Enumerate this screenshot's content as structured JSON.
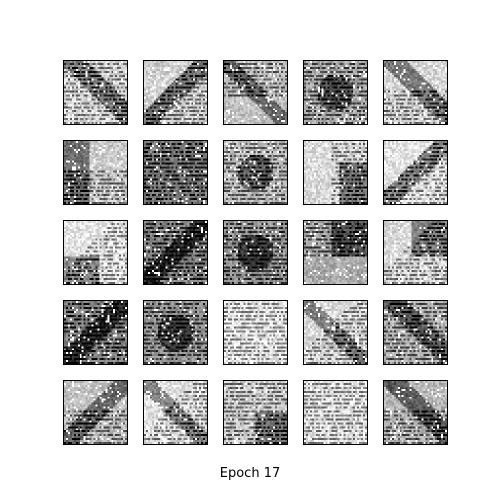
{
  "figure": {
    "caption": "Epoch 17",
    "rows": 5,
    "cols": 5,
    "tiles": [
      {
        "base": 215,
        "stripes": "full",
        "blob": "diag-right"
      },
      {
        "base": 205,
        "stripes": "diag",
        "blob": "diag-left"
      },
      {
        "base": 190,
        "stripes": "top",
        "blob": "diag-mid"
      },
      {
        "base": 170,
        "stripes": "full",
        "blob": "center"
      },
      {
        "base": 210,
        "stripes": "bottom",
        "blob": "diag-right"
      },
      {
        "base": 200,
        "stripes": "bottom",
        "blob": "left"
      },
      {
        "base": 120,
        "stripes": "full",
        "blob": "none"
      },
      {
        "base": 190,
        "stripes": "full",
        "blob": "center"
      },
      {
        "base": 215,
        "stripes": "right",
        "blob": "right"
      },
      {
        "base": 225,
        "stripes": "diag",
        "blob": "diag-left"
      },
      {
        "base": 225,
        "stripes": "diag",
        "blob": "bottom-left"
      },
      {
        "base": 130,
        "stripes": "full",
        "blob": "diag-left"
      },
      {
        "base": 150,
        "stripes": "full",
        "blob": "center"
      },
      {
        "base": 170,
        "stripes": "top",
        "blob": "top-right"
      },
      {
        "base": 215,
        "stripes": "diag",
        "blob": "top-right"
      },
      {
        "base": 130,
        "stripes": "full",
        "blob": "diag-left"
      },
      {
        "base": 150,
        "stripes": "full",
        "blob": "center"
      },
      {
        "base": 230,
        "stripes": "full",
        "blob": "none"
      },
      {
        "base": 215,
        "stripes": "diag",
        "blob": "diag-mid"
      },
      {
        "base": 180,
        "stripes": "full",
        "blob": "diag-right"
      },
      {
        "base": 190,
        "stripes": "bottom",
        "blob": "diag-left"
      },
      {
        "base": 220,
        "stripes": "diag",
        "blob": "diag-mid"
      },
      {
        "base": 205,
        "stripes": "full",
        "blob": "bottom-right"
      },
      {
        "base": 225,
        "stripes": "full",
        "blob": "none"
      },
      {
        "base": 180,
        "stripes": "bottom",
        "blob": "diag-right"
      }
    ]
  }
}
